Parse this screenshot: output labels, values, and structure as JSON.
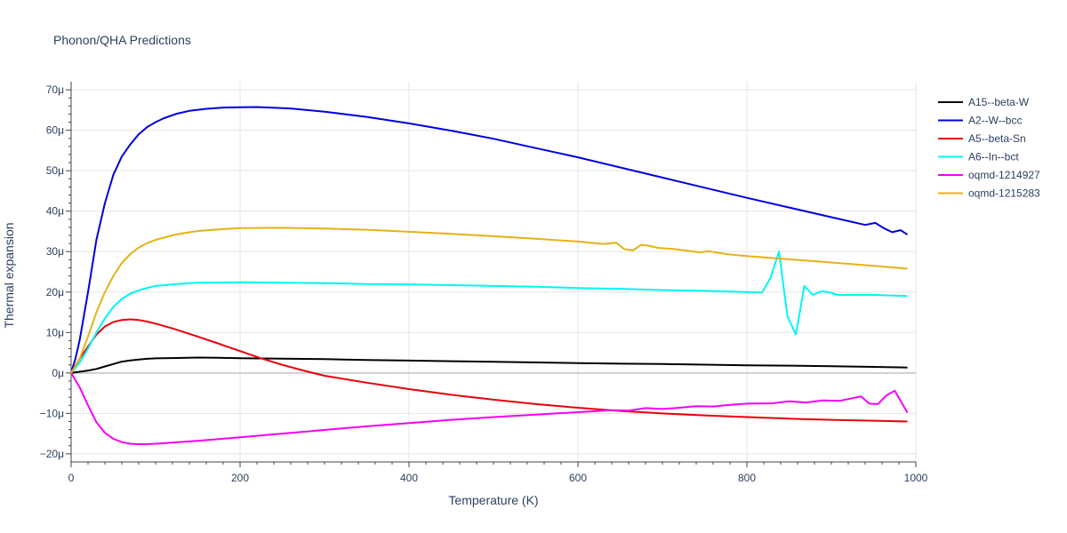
{
  "chart_data": {
    "type": "line",
    "title": "Phonon/QHA Predictions",
    "xlabel": "Temperature (K)",
    "ylabel": "Thermal expansion",
    "xlim": [
      0,
      1000
    ],
    "ylim": [
      -22,
      72
    ],
    "y_unit_suffix": "μ",
    "x_ticks": [
      0,
      200,
      400,
      600,
      800,
      1000
    ],
    "y_ticks": [
      -20,
      -10,
      0,
      10,
      20,
      30,
      40,
      50,
      60,
      70
    ],
    "grid": true,
    "legend_position": "top-right",
    "series": [
      {
        "name": "A15--beta-W",
        "color": "#000000",
        "points": [
          [
            0,
            0
          ],
          [
            10,
            0.3
          ],
          [
            20,
            0.6
          ],
          [
            30,
            1.0
          ],
          [
            40,
            1.6
          ],
          [
            50,
            2.2
          ],
          [
            60,
            2.8
          ],
          [
            70,
            3.1
          ],
          [
            80,
            3.3
          ],
          [
            90,
            3.5
          ],
          [
            100,
            3.6
          ],
          [
            125,
            3.7
          ],
          [
            150,
            3.8
          ],
          [
            175,
            3.75
          ],
          [
            200,
            3.65
          ],
          [
            250,
            3.55
          ],
          [
            300,
            3.4
          ],
          [
            350,
            3.2
          ],
          [
            400,
            3.05
          ],
          [
            450,
            2.9
          ],
          [
            500,
            2.75
          ],
          [
            550,
            2.6
          ],
          [
            600,
            2.45
          ],
          [
            650,
            2.3
          ],
          [
            700,
            2.2
          ],
          [
            750,
            2.05
          ],
          [
            800,
            1.9
          ],
          [
            850,
            1.8
          ],
          [
            900,
            1.65
          ],
          [
            950,
            1.5
          ],
          [
            990,
            1.35
          ]
        ]
      },
      {
        "name": "A2--W--bcc",
        "color": "#0000dd",
        "points": [
          [
            0,
            0
          ],
          [
            5,
            3.5
          ],
          [
            10,
            8
          ],
          [
            20,
            20
          ],
          [
            30,
            33
          ],
          [
            40,
            42
          ],
          [
            50,
            49
          ],
          [
            60,
            53.5
          ],
          [
            70,
            56.5
          ],
          [
            80,
            59
          ],
          [
            90,
            60.8
          ],
          [
            100,
            62
          ],
          [
            110,
            63
          ],
          [
            125,
            64.1
          ],
          [
            140,
            64.8
          ],
          [
            160,
            65.3
          ],
          [
            180,
            65.6
          ],
          [
            200,
            65.7
          ],
          [
            220,
            65.75
          ],
          [
            260,
            65.4
          ],
          [
            300,
            64.6
          ],
          [
            350,
            63.3
          ],
          [
            400,
            61.7
          ],
          [
            450,
            59.9
          ],
          [
            500,
            57.9
          ],
          [
            550,
            55.6
          ],
          [
            600,
            53.3
          ],
          [
            650,
            50.8
          ],
          [
            700,
            48.3
          ],
          [
            750,
            45.8
          ],
          [
            800,
            43.3
          ],
          [
            850,
            40.9
          ],
          [
            900,
            38.5
          ],
          [
            940,
            36.6
          ],
          [
            952,
            37.1
          ],
          [
            962,
            35.8
          ],
          [
            972,
            34.8
          ],
          [
            982,
            35.3
          ],
          [
            990,
            34.2
          ]
        ]
      },
      {
        "name": "A5--beta-Sn",
        "color": "#e8000b",
        "points": [
          [
            0,
            0
          ],
          [
            10,
            3.5
          ],
          [
            20,
            6.5
          ],
          [
            30,
            9.5
          ],
          [
            40,
            11.5
          ],
          [
            50,
            12.6
          ],
          [
            60,
            13.1
          ],
          [
            70,
            13.25
          ],
          [
            80,
            13.1
          ],
          [
            90,
            12.7
          ],
          [
            100,
            12.2
          ],
          [
            120,
            11
          ],
          [
            150,
            9
          ],
          [
            175,
            7.2
          ],
          [
            200,
            5.4
          ],
          [
            225,
            3.6
          ],
          [
            250,
            2
          ],
          [
            275,
            0.6
          ],
          [
            300,
            -0.7
          ],
          [
            350,
            -2.4
          ],
          [
            400,
            -4
          ],
          [
            450,
            -5.4
          ],
          [
            500,
            -6.6
          ],
          [
            550,
            -7.7
          ],
          [
            600,
            -8.6
          ],
          [
            650,
            -9.4
          ],
          [
            700,
            -10
          ],
          [
            750,
            -10.5
          ],
          [
            800,
            -10.9
          ],
          [
            850,
            -11.3
          ],
          [
            900,
            -11.6
          ],
          [
            950,
            -11.8
          ],
          [
            990,
            -12
          ]
        ]
      },
      {
        "name": "A6--In--bct",
        "color": "#00f5f5",
        "points": [
          [
            0,
            0
          ],
          [
            10,
            2.5
          ],
          [
            20,
            6
          ],
          [
            30,
            10
          ],
          [
            40,
            13.5
          ],
          [
            50,
            16.3
          ],
          [
            60,
            18.3
          ],
          [
            70,
            19.6
          ],
          [
            80,
            20.4
          ],
          [
            90,
            21
          ],
          [
            100,
            21.5
          ],
          [
            125,
            22
          ],
          [
            150,
            22.3
          ],
          [
            200,
            22.4
          ],
          [
            250,
            22.3
          ],
          [
            300,
            22.2
          ],
          [
            350,
            22
          ],
          [
            400,
            21.9
          ],
          [
            450,
            21.7
          ],
          [
            500,
            21.5
          ],
          [
            550,
            21.3
          ],
          [
            600,
            21
          ],
          [
            650,
            20.8
          ],
          [
            700,
            20.5
          ],
          [
            750,
            20.3
          ],
          [
            800,
            20
          ],
          [
            818,
            19.9
          ],
          [
            828,
            23.5
          ],
          [
            838,
            30
          ],
          [
            848,
            14
          ],
          [
            858,
            9.5
          ],
          [
            868,
            21.5
          ],
          [
            878,
            19.3
          ],
          [
            888,
            20.2
          ],
          [
            898,
            19.9
          ],
          [
            908,
            19.3
          ],
          [
            950,
            19.3
          ],
          [
            990,
            19
          ]
        ]
      },
      {
        "name": "oqmd-1214927",
        "color": "#f500f5",
        "points": [
          [
            0,
            0
          ],
          [
            10,
            -3.5
          ],
          [
            20,
            -8
          ],
          [
            30,
            -12.2
          ],
          [
            40,
            -14.8
          ],
          [
            50,
            -16.3
          ],
          [
            60,
            -17.1
          ],
          [
            70,
            -17.5
          ],
          [
            80,
            -17.6
          ],
          [
            90,
            -17.6
          ],
          [
            100,
            -17.5
          ],
          [
            150,
            -16.8
          ],
          [
            200,
            -15.9
          ],
          [
            250,
            -15
          ],
          [
            300,
            -14.1
          ],
          [
            350,
            -13.2
          ],
          [
            400,
            -12.4
          ],
          [
            450,
            -11.6
          ],
          [
            500,
            -10.9
          ],
          [
            550,
            -10.3
          ],
          [
            600,
            -9.7
          ],
          [
            640,
            -9.2
          ],
          [
            660,
            -9.3
          ],
          [
            680,
            -8.7
          ],
          [
            700,
            -8.9
          ],
          [
            720,
            -8.6
          ],
          [
            740,
            -8.2
          ],
          [
            760,
            -8.3
          ],
          [
            780,
            -7.9
          ],
          [
            800,
            -7.6
          ],
          [
            830,
            -7.5
          ],
          [
            850,
            -7
          ],
          [
            870,
            -7.3
          ],
          [
            890,
            -6.8
          ],
          [
            910,
            -6.9
          ],
          [
            935,
            -5.8
          ],
          [
            945,
            -7.6
          ],
          [
            955,
            -7.7
          ],
          [
            965,
            -5.6
          ],
          [
            975,
            -4.4
          ],
          [
            990,
            -9.8
          ]
        ]
      },
      {
        "name": "oqmd-1215283",
        "color": "#e6b214",
        "points": [
          [
            0,
            0
          ],
          [
            10,
            3.5
          ],
          [
            20,
            9
          ],
          [
            30,
            15
          ],
          [
            40,
            20
          ],
          [
            50,
            24
          ],
          [
            60,
            27.2
          ],
          [
            70,
            29.4
          ],
          [
            80,
            31
          ],
          [
            90,
            32.1
          ],
          [
            100,
            32.9
          ],
          [
            125,
            34.3
          ],
          [
            150,
            35.1
          ],
          [
            175,
            35.5
          ],
          [
            200,
            35.8
          ],
          [
            250,
            35.9
          ],
          [
            300,
            35.7
          ],
          [
            350,
            35.4
          ],
          [
            400,
            34.9
          ],
          [
            450,
            34.4
          ],
          [
            500,
            33.8
          ],
          [
            550,
            33.2
          ],
          [
            600,
            32.5
          ],
          [
            630,
            31.9
          ],
          [
            645,
            32.2
          ],
          [
            655,
            30.6
          ],
          [
            665,
            30.3
          ],
          [
            675,
            31.7
          ],
          [
            685,
            31.4
          ],
          [
            695,
            30.9
          ],
          [
            710,
            30.7
          ],
          [
            745,
            29.8
          ],
          [
            755,
            30.1
          ],
          [
            775,
            29.4
          ],
          [
            800,
            28.9
          ],
          [
            850,
            28.1
          ],
          [
            900,
            27.3
          ],
          [
            950,
            26.5
          ],
          [
            990,
            25.8
          ]
        ]
      }
    ]
  }
}
